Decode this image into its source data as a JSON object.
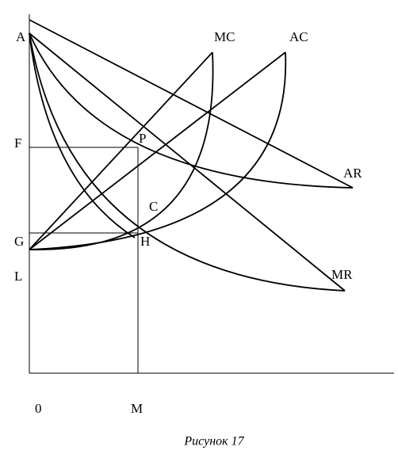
{
  "labels": {
    "A": "A",
    "MC": "MC",
    "AC": "AC",
    "F": "F",
    "P": "P",
    "AR": "AR",
    "C": "C",
    "G": "G",
    "H": "H",
    "L": "L",
    "MR": "MR",
    "O": "0",
    "M": "M"
  },
  "caption": "Рисунок 17"
}
